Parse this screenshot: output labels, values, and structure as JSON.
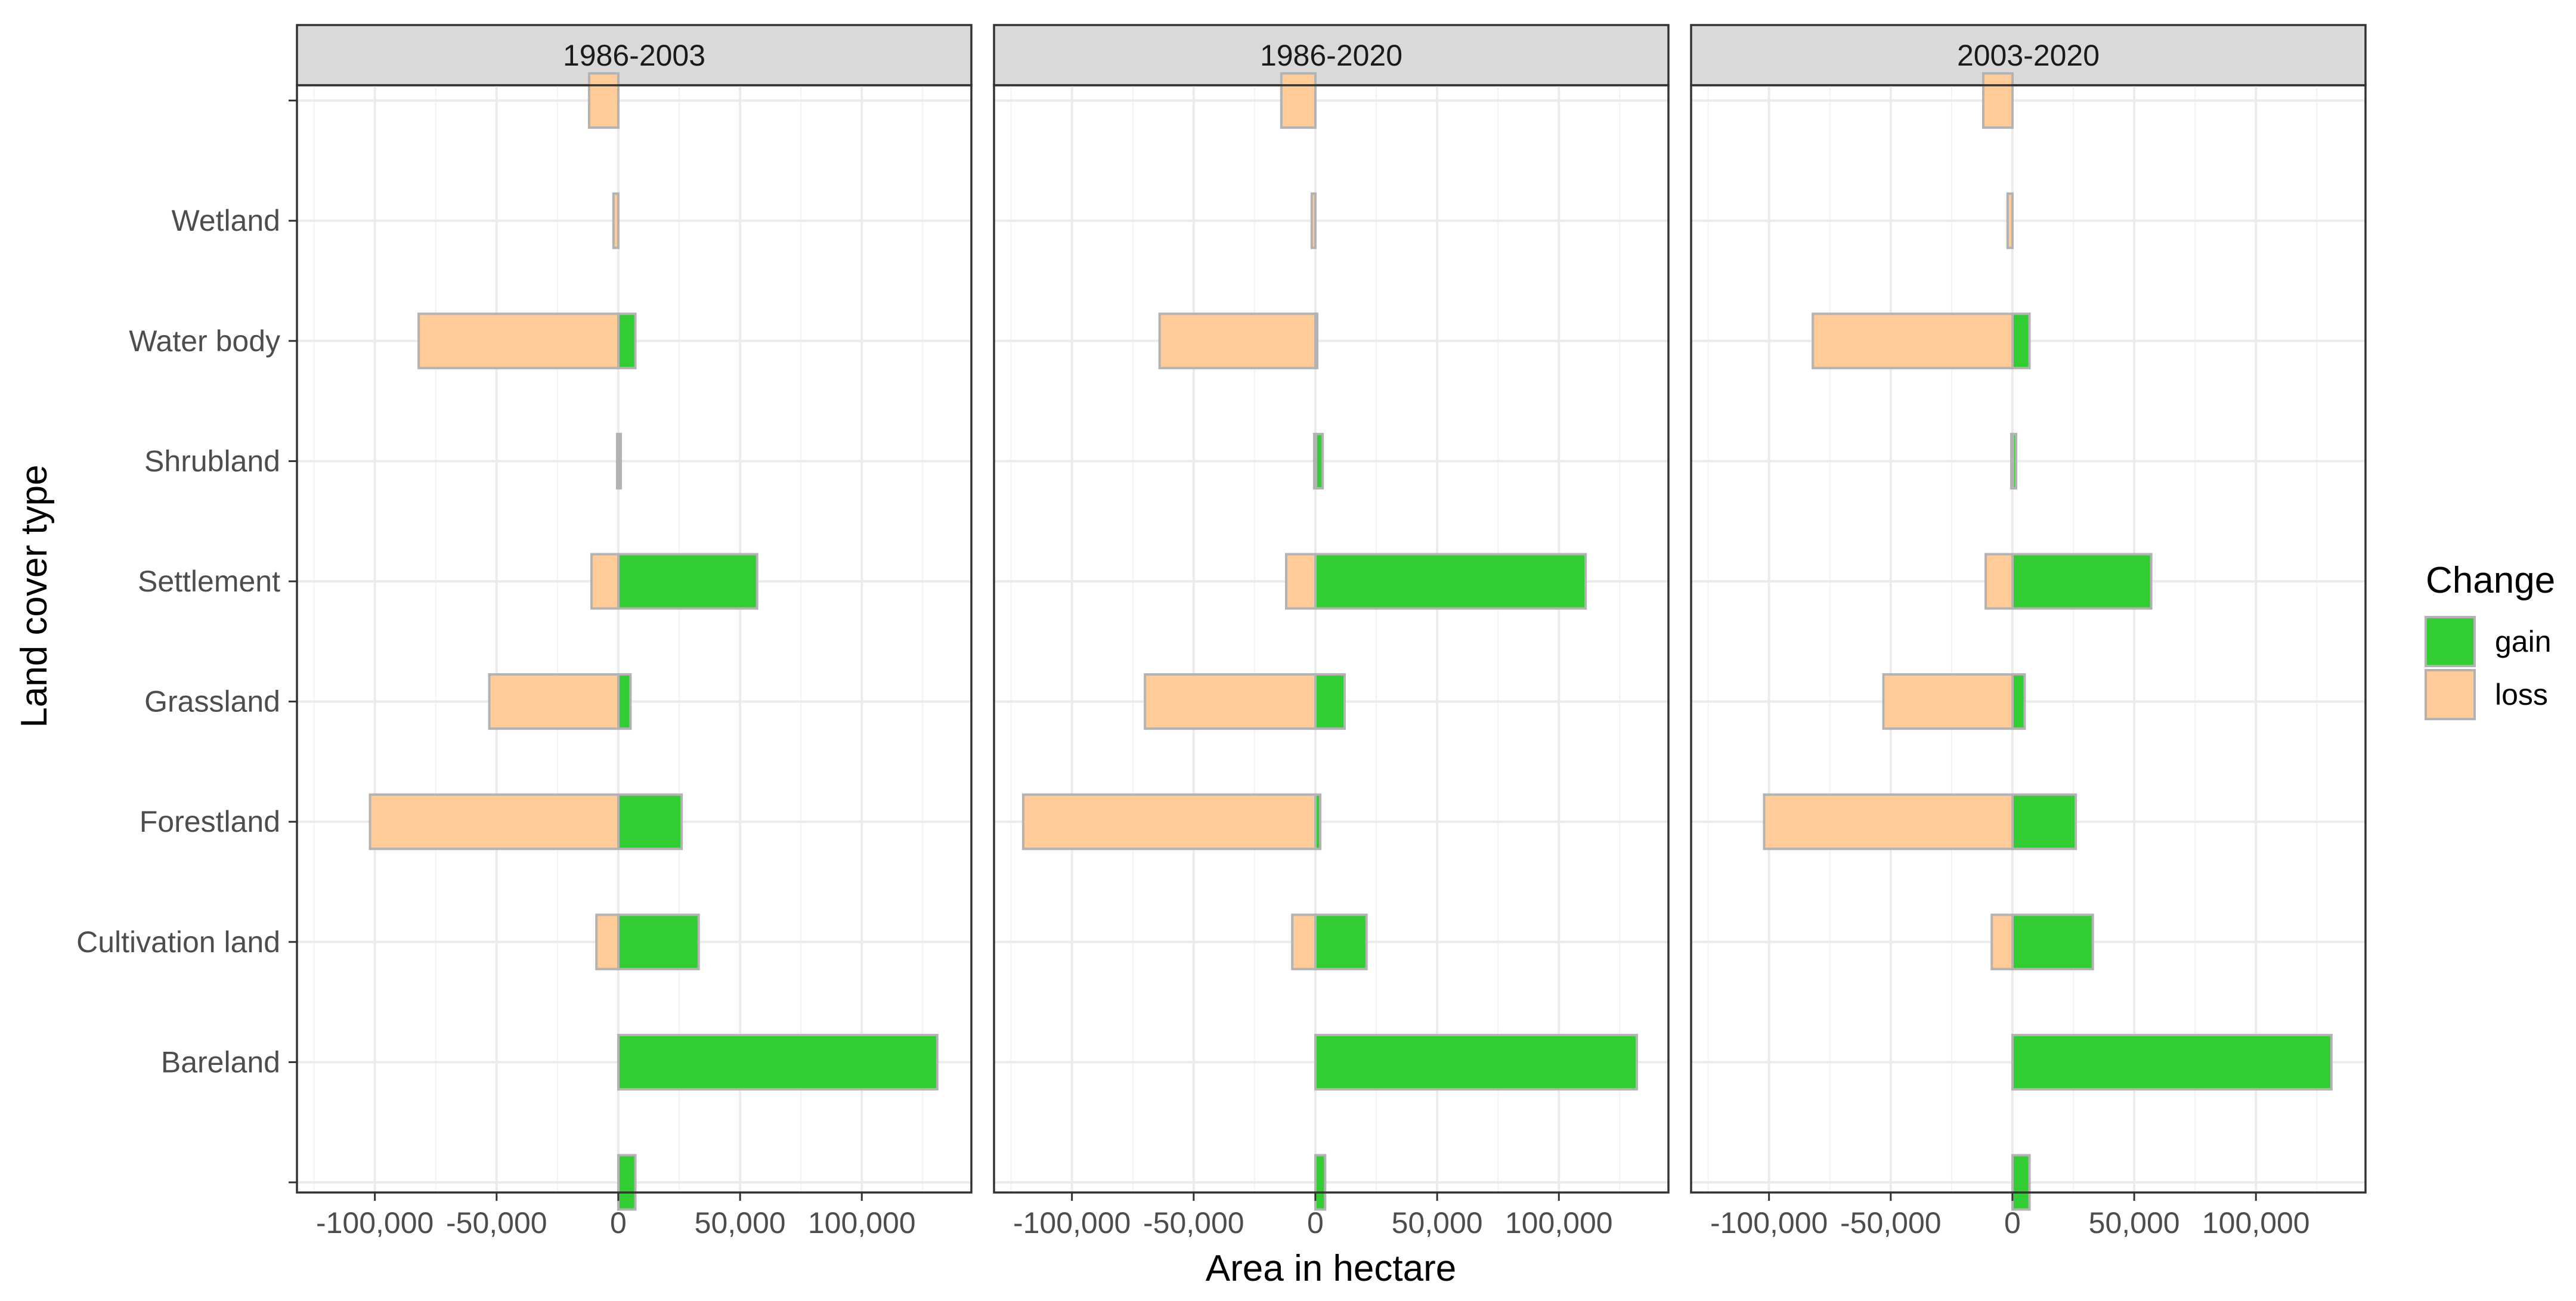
{
  "chart_data": {
    "type": "bar",
    "orientation": "horizontal",
    "facet": "wrap",
    "xlabel": "Area in hectare",
    "ylabel": "Land cover type",
    "x_tick_labels": [
      "-100,000",
      "-50,000",
      "0",
      "50,000",
      "100,000"
    ],
    "x_ticks": [
      -100000,
      -50000,
      0,
      50000,
      100000
    ],
    "xlim": [
      -132000,
      145000
    ],
    "categories": [
      "",
      "Bareland",
      "Cultivation land",
      "Forestland",
      "Grassland",
      "Settlement",
      "Shrubland",
      "Water body",
      "Wetland",
      ""
    ],
    "legend": {
      "title": "Change",
      "position": "right",
      "entries": [
        {
          "key": "gain",
          "label": "gain",
          "color": "#32cd32"
        },
        {
          "key": "loss",
          "label": "loss",
          "color": "#ffcc99"
        }
      ]
    },
    "colors": {
      "gain": "#32cd32",
      "loss": "#ffcc99",
      "bar_outline": "#b3b3b3"
    },
    "panels": [
      {
        "title": "1986-2003",
        "series": [
          {
            "name": "gain",
            "values": [
              7000,
              131000,
              33000,
              26000,
              5000,
              57000,
              1000,
              7000,
              0,
              0
            ]
          },
          {
            "name": "loss",
            "values": [
              0,
              0,
              -9000,
              -102000,
              -53000,
              -11000,
              -500,
              -82000,
              -2000,
              -12000
            ]
          }
        ]
      },
      {
        "title": "1986-2020",
        "series": [
          {
            "name": "gain",
            "values": [
              4000,
              132000,
              21000,
              2000,
              12000,
              111000,
              3000,
              500,
              0,
              0
            ]
          },
          {
            "name": "loss",
            "values": [
              0,
              0,
              -9500,
              -120000,
              -70000,
              -12000,
              -500,
              -64000,
              -1500,
              -14000
            ]
          }
        ]
      },
      {
        "title": "2003-2020",
        "series": [
          {
            "name": "gain",
            "values": [
              7000,
              131000,
              33000,
              26000,
              5000,
              57000,
              1500,
              7000,
              0,
              0
            ]
          },
          {
            "name": "loss",
            "values": [
              0,
              0,
              -8500,
              -102000,
              -53000,
              -11000,
              -500,
              -82000,
              -2000,
              -12000
            ]
          }
        ]
      }
    ]
  }
}
